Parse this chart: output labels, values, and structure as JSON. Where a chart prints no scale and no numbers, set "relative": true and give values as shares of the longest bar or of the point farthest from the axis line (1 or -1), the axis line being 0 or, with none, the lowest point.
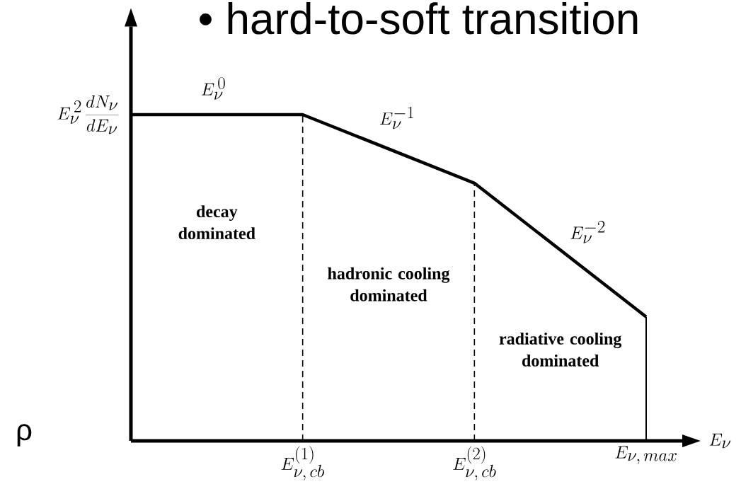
{
  "chart_data": {
    "type": "line",
    "title": "• hard-to-soft transition",
    "ylabel": "E_\\nu^{\\,2}\\,\\frac{dN_\\nu}{dE_\\nu}",
    "xlabel": "E_\\nu",
    "categories": [
      null,
      "E_{\\nu,\\,cb}^{(1)}",
      "E_{\\nu,\\,cb}^{(2)}",
      "E_{\\nu,\\,max}"
    ],
    "values": [
      1,
      1,
      0.79,
      0.38
    ],
    "relative": true,
    "color": "#000000",
    "ref_lines": [
      {
        "axis": "x",
        "value": "E_{\\nu,\\,cb}^{(1)}",
        "line_style": "dashed"
      },
      {
        "axis": "x",
        "value": "E_{\\nu,\\,cb}^{(2)}",
        "line_style": "dashed"
      },
      {
        "axis": "x",
        "value": "E_{\\nu,\\,max}",
        "line_style": "solid"
      }
    ],
    "annotations": [
      "E_\\nu^{\\,0}",
      "E_\\nu^{-1}",
      "E_\\nu^{-2}",
      "decay dominated",
      "hadronic cooling dominated",
      "radiative cooling dominated",
      "ρ"
    ]
  }
}
